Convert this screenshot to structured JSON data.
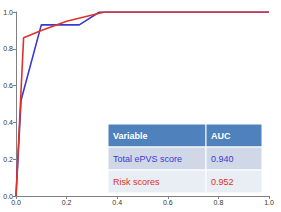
{
  "chart_data": {
    "type": "line",
    "series": [
      {
        "name": "Total ePVS score",
        "color": "#3a3acf",
        "x": [
          0,
          0.02,
          0.1,
          0.25,
          0.33,
          1.0
        ],
        "values": [
          0,
          0.52,
          0.93,
          0.93,
          1.0,
          1.0
        ]
      },
      {
        "name": "Risk scores",
        "color": "#e0302a",
        "x": [
          0,
          0.03,
          0.1,
          0.2,
          0.35,
          1.0
        ],
        "values": [
          0,
          0.86,
          0.9,
          0.95,
          1.0,
          1.0
        ]
      }
    ],
    "xlim": [
      0,
      1.0
    ],
    "ylim": [
      0,
      1.0
    ],
    "xticks": [
      {
        "value": 0,
        "label": "0.0"
      },
      {
        "value": 0.2,
        "label": "0.2"
      },
      {
        "value": 0.4,
        "label": "0.4"
      },
      {
        "value": 0.6,
        "label": "0.6"
      },
      {
        "value": 0.8,
        "label": "0.8"
      },
      {
        "value": 1.0,
        "label": "1.0"
      }
    ],
    "yticks": [
      {
        "value": 0,
        "label": "0.0"
      },
      {
        "value": 0.2,
        "label": "0.2"
      },
      {
        "value": 0.4,
        "label": "0.4"
      },
      {
        "value": 0.6,
        "label": "0.6"
      },
      {
        "value": 0.8,
        "label": "0.8"
      },
      {
        "value": 1.0,
        "label": "1.0"
      }
    ],
    "grid": false,
    "table": {
      "header": [
        "Variable",
        "AUC"
      ],
      "rows": [
        [
          "Total ePVS score",
          "0.940"
        ],
        [
          "Risk scores",
          "0.952"
        ]
      ]
    }
  }
}
